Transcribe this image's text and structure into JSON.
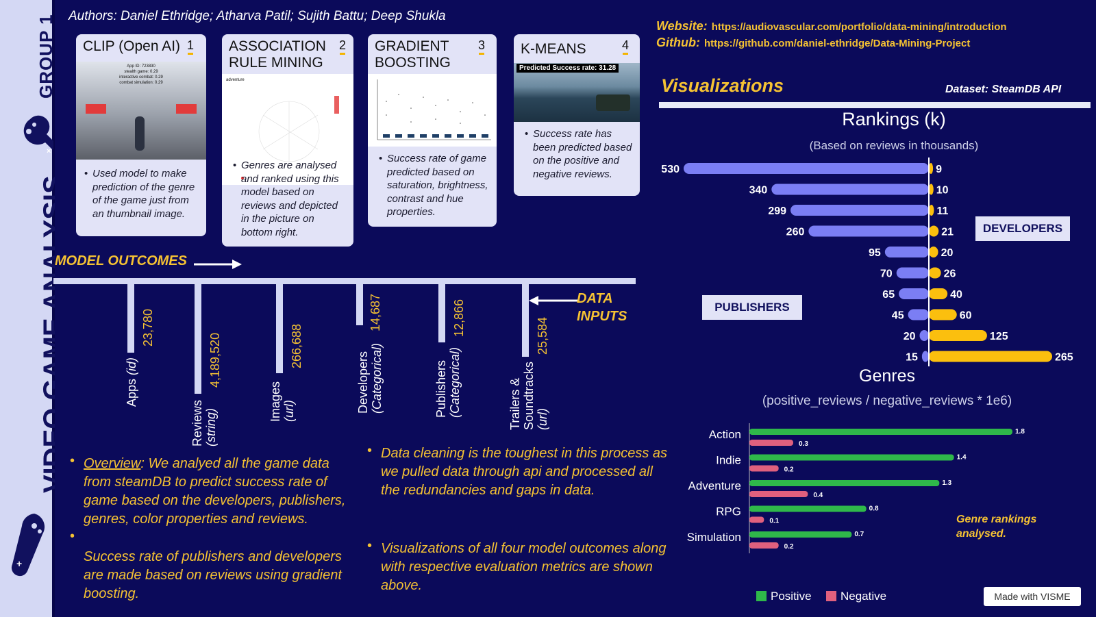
{
  "sidebar": {
    "group": "GROUP 1",
    "title": "VIDEO GAME ANALYSIS"
  },
  "authors": "Authors: Daniel Ethridge; Atharva Patil; Sujith Battu; Deep Shukla",
  "cards": [
    {
      "title": "CLIP (Open AI)",
      "num": "1",
      "desc": "Used model to make prediction of the genre of the game just from an thumbnail image.",
      "overlay": [
        "App ID: 723830",
        "stealth game: 0.29",
        "interactive combat: 0.29",
        "combat simulation: 0.29"
      ]
    },
    {
      "title": "ASSOCIATION RULE MINING",
      "num": "2",
      "desc": "Genres are analysed and ranked using this model based on reviews and depicted in the picture on bottom right.",
      "overlay": [
        "adventure"
      ]
    },
    {
      "title": "GRADIENT BOOSTING",
      "num": "3",
      "desc": "Success rate of game predicted based on saturation, brightness, contrast and hue properties.",
      "overlay": []
    },
    {
      "title": "K-MEANS",
      "num": "4",
      "desc": "Success rate has been predicted based on the positive and negative reviews.",
      "overlay": [
        "Predicted Success rate: 31.28"
      ]
    }
  ],
  "model_outcomes": "MODEL OUTCOMES",
  "data_inputs": "DATA INPUTS",
  "inputs": [
    {
      "label": "Apps",
      "sub": "(id)",
      "value": "23,780"
    },
    {
      "label": "Reviews",
      "sub": "(string)",
      "value": "4,189,520"
    },
    {
      "label": "Images",
      "sub": "(url)",
      "value": "266,688"
    },
    {
      "label": "Developers",
      "sub": "(Categorical)",
      "value": "14,687"
    },
    {
      "label": "Publishers",
      "sub": "(Categorical)",
      "value": "12,866"
    },
    {
      "label": "Trailers &",
      "sub": "Soundtracks",
      "sub2": "(url)",
      "value": "25,584"
    }
  ],
  "paragraphs": {
    "overview_label": "Overview",
    "overview": ": We analyed all the game data from steamDB to predict success rate of game based on the developers, publishers, genres, color properties and reviews.",
    "success": "Success rate of publishers and developers are made based on reviews using gradient boosting.",
    "cleaning": "Data cleaning is the toughest in this process as we pulled data through api and processed all the redundancies and gaps in data.",
    "visualizations": "Visualizations of all four model outcomes along with respective evaluation metrics are shown above."
  },
  "links": {
    "website_label": "Website:",
    "website": "https://audiovascular.com/portfolio/data-mining/introduction",
    "github_label": "Github:",
    "github": "https://github.com/daniel-ethridge/Data-Mining-Project"
  },
  "viz_title": "Visualizations",
  "dataset": "Dataset: SteamDB API",
  "colors": {
    "background": "#0b0a5a",
    "accent": "#f5c233",
    "publishers": "#7b7ef4",
    "developers": "#fbbf0e",
    "positive": "#2fb84a",
    "negative": "#e0607e"
  },
  "chart_data": [
    {
      "type": "bar",
      "title": "Rankings (k)",
      "subtitle": "(Based on reviews in thousands)",
      "orientation": "diverging-horizontal",
      "series": [
        {
          "name": "PUBLISHERS",
          "values": [
            530,
            340,
            299,
            260,
            95,
            70,
            65,
            45,
            20,
            15
          ]
        },
        {
          "name": "DEVELOPERS",
          "values": [
            9,
            10,
            11,
            21,
            20,
            26,
            40,
            60,
            125,
            265
          ]
        }
      ]
    },
    {
      "type": "bar",
      "title": "Genres",
      "subtitle": "(positive_reviews / negative_reviews * 1e6)",
      "orientation": "horizontal",
      "categories": [
        "Action",
        "Indie",
        "Adventure",
        "RPG",
        "Simulation"
      ],
      "series": [
        {
          "name": "Positive",
          "values": [
            1.8,
            1.4,
            1.3,
            0.8,
            0.7
          ]
        },
        {
          "name": "Negative",
          "values": [
            0.3,
            0.2,
            0.4,
            0.1,
            0.2
          ]
        }
      ],
      "note": "Genre rankings analysed."
    }
  ],
  "legend": {
    "positive": "Positive",
    "negative": "Negative"
  },
  "footer": "Made with VISME"
}
